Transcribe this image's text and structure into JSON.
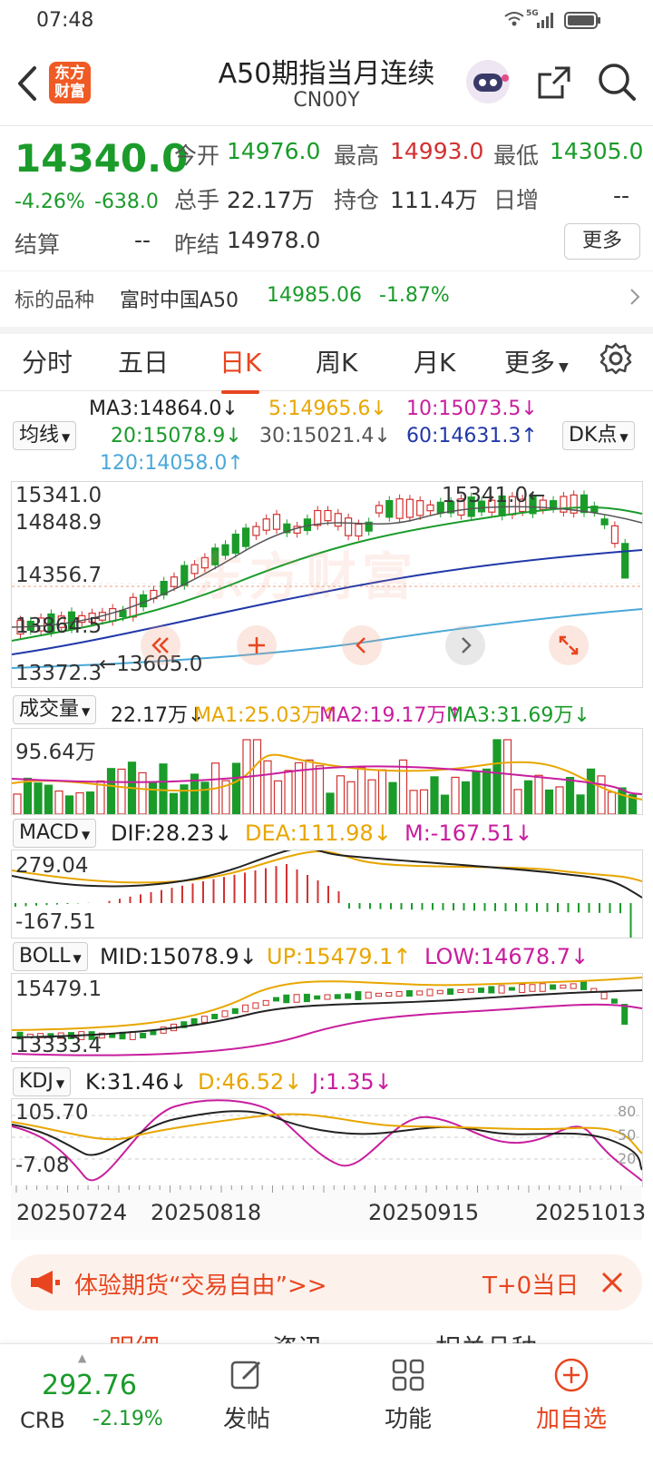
{
  "status_bar": {
    "time": "07:48",
    "network": "5G"
  },
  "nav": {
    "title": "A50期指当月连续",
    "code": "CN00Y",
    "logo_text": "东方财富"
  },
  "quote": {
    "price": "14340.0",
    "change_pct": "-4.26%",
    "change": "-638.0",
    "open_label": "今开",
    "open": "14976.0",
    "high_label": "最高",
    "high": "14993.0",
    "low_label": "最低",
    "low": "14305.0",
    "volume_label": "总手",
    "volume": "22.17万",
    "oi_label": "持仓",
    "oi": "111.4万",
    "daily_inc_label": "日增",
    "daily_inc": "--",
    "settle_label": "结算",
    "settle": "--",
    "prev_settle_label": "昨结",
    "prev_settle": "14978.0",
    "more_button": "更多",
    "underlying_label": "标的品种",
    "underlying_name": "富时中国A50",
    "underlying_price": "14985.06",
    "underlying_pct": "-1.87%"
  },
  "tabs": [
    "分时",
    "五日",
    "日K",
    "周K",
    "月K",
    "更多"
  ],
  "kline": {
    "ma_selector": "均线",
    "dk_button": "DK点",
    "ma3": "MA3:14864.0↓",
    "ma5": "5:14965.6↓",
    "ma10": "10:15073.5↓",
    "ma20": "20:15078.9↓",
    "ma30": "30:15021.4↓",
    "ma60": "60:14631.3↑",
    "ma120": "120:14058.0↑",
    "y_top": "15341.0",
    "y_2": "14848.9",
    "y_3": "14356.7",
    "y_4": "13864.5",
    "y_bottom": "13372.3",
    "max_label": "15341.0",
    "min_label": "13605.0",
    "watermark": "东方财富"
  },
  "volume": {
    "selector": "成交量",
    "value": "22.17万↓",
    "ma1": "MA1:25.03万↑",
    "ma2": "MA2:19.17万↑",
    "ma3": "MA3:31.69万↓",
    "y_top": "95.64万"
  },
  "macd": {
    "selector": "MACD",
    "dif": "DIF:28.23↓",
    "dea": "DEA:111.98↓",
    "m": "M:-167.51↓",
    "y_top": "279.04",
    "y_bottom": "-167.51"
  },
  "boll": {
    "selector": "BOLL",
    "mid": "MID:15078.9↓",
    "up": "UP:15479.1↑",
    "low": "LOW:14678.7↓",
    "y_top": "15479.1",
    "y_bottom": "13333.4"
  },
  "kdj": {
    "selector": "KDJ",
    "k": "K:31.46↓",
    "d": "D:46.52↓",
    "j": "J:1.35↓",
    "y_top": "105.70",
    "y_bottom": "-7.08",
    "r80": "80",
    "r50": "50",
    "r20": "20"
  },
  "dates": [
    "20250724",
    "20250818",
    "20250915",
    "20251013"
  ],
  "banner": {
    "text": "体验期货“交易自由”>>",
    "right_text": "T+0当日"
  },
  "partial_tabs": [
    "明细",
    "资讯",
    "相关品种"
  ],
  "bottom_bar": {
    "crb_price": "292.76",
    "crb_label": "CRB",
    "crb_pct": "-2.19%",
    "post": "发帖",
    "function": "功能",
    "add": "加自选"
  },
  "colors": {
    "up": "#d23131",
    "down": "#1a9b2a",
    "accent": "#e8451f"
  }
}
